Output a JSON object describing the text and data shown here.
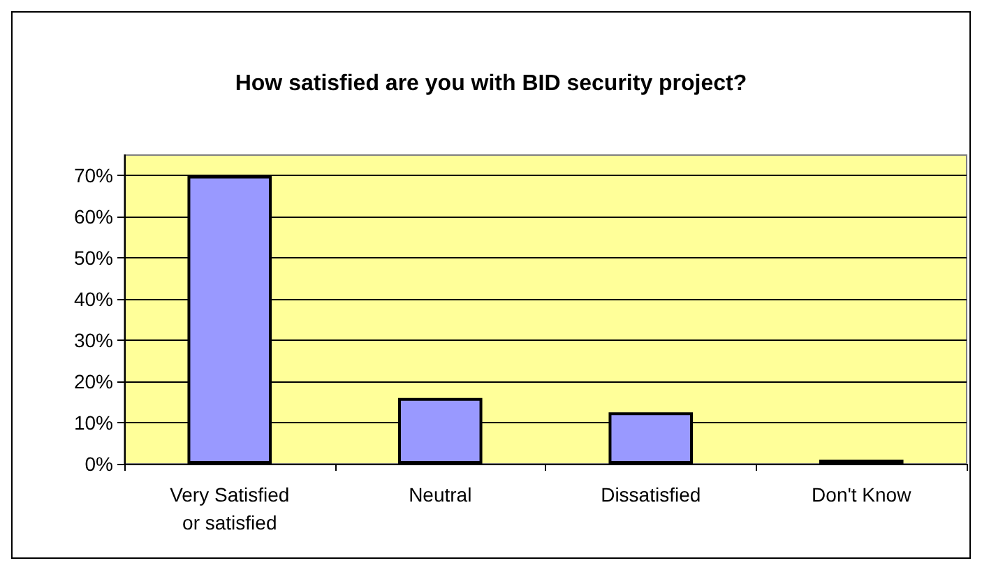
{
  "chart_data": {
    "type": "bar",
    "title": "How satisfied are you with BID security project?",
    "categories": [
      "Very Satisfied\nor satisfied",
      "Neutral",
      "Dissatisfied",
      "Don't Know"
    ],
    "values": [
      70,
      16,
      12.5,
      1
    ],
    "color": "#9999ff",
    "ylim": [
      0,
      75
    ],
    "yticks": [
      {
        "value": 0,
        "label": "0%"
      },
      {
        "value": 10,
        "label": "10%"
      },
      {
        "value": 20,
        "label": "20%"
      },
      {
        "value": 30,
        "label": "30%"
      },
      {
        "value": 40,
        "label": "40%"
      },
      {
        "value": 50,
        "label": "50%"
      },
      {
        "value": 60,
        "label": "60%"
      },
      {
        "value": 70,
        "label": "70%"
      }
    ],
    "grid": "y"
  }
}
